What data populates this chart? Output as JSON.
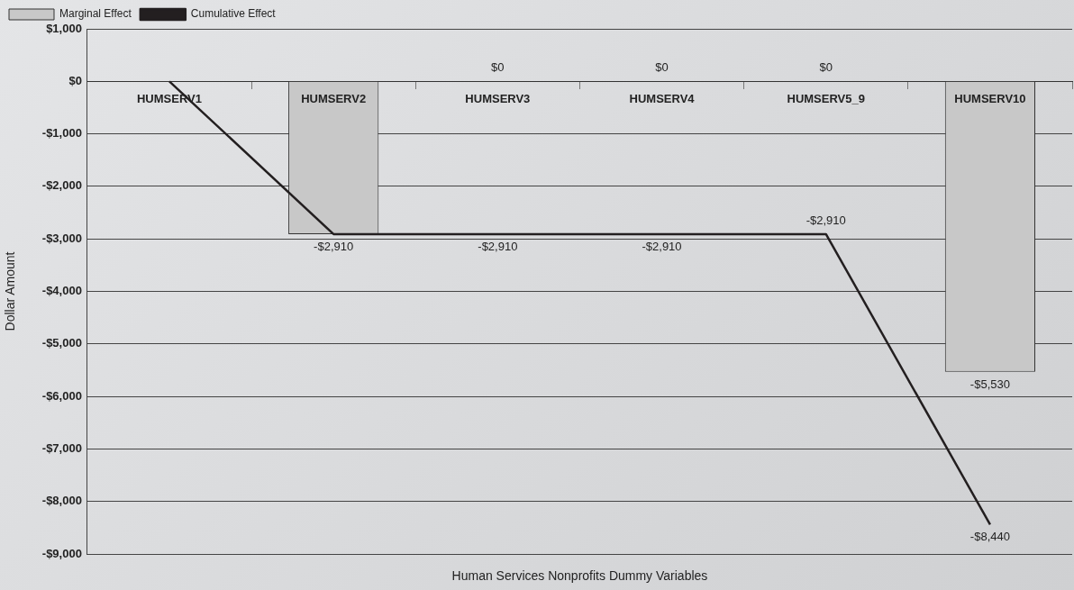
{
  "chart_data": {
    "type": "bar",
    "xlabel": "Human Services Nonprofits Dummy Variables",
    "ylabel": "Dollar Amount",
    "categories": [
      "HUMSERV1",
      "HUMSERV2",
      "HUMSERV3",
      "HUMSERV4",
      "HUMSERV5_9",
      "HUMSERV10"
    ],
    "series": [
      {
        "name": "Marginal Effect",
        "color": "#c8c8c8",
        "values": [
          0,
          -2910,
          0,
          0,
          0,
          -5530
        ],
        "value_labels": [
          null,
          "-$2,910",
          "$0",
          "$0",
          "$0",
          "-$5,530"
        ]
      },
      {
        "name": "Cumulative Effect",
        "type": "line",
        "color": "#231f20",
        "values": [
          0,
          -2910,
          -2910,
          -2910,
          -2910,
          -8440
        ],
        "value_labels": [
          null,
          null,
          "-$2,910",
          "-$2,910",
          "-$2,910",
          "-$8,440"
        ]
      }
    ],
    "ylim": [
      -9000,
      1000
    ],
    "yticks": [
      {
        "value": 1000,
        "label": "$1,000"
      },
      {
        "value": 0,
        "label": "$0"
      },
      {
        "value": -1000,
        "label": "-$1,000"
      },
      {
        "value": -2000,
        "label": "-$2,000"
      },
      {
        "value": -3000,
        "label": "-$3,000"
      },
      {
        "value": -4000,
        "label": "-$4,000"
      },
      {
        "value": -5000,
        "label": "-$5,000"
      },
      {
        "value": -6000,
        "label": "-$6,000"
      },
      {
        "value": -7000,
        "label": "-$7,000"
      },
      {
        "value": -8000,
        "label": "-$8,000"
      },
      {
        "value": -9000,
        "label": "-$9,000"
      }
    ],
    "grid": "y",
    "legend": "top left",
    "marker": "none",
    "line_style": "solid"
  }
}
